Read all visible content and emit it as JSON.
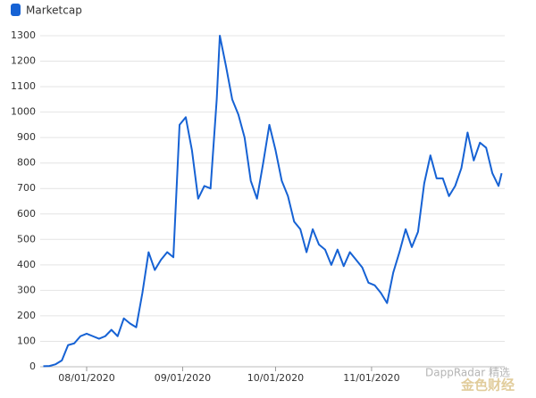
{
  "chart_data": {
    "type": "line",
    "series": [
      {
        "name": "Marketcap",
        "color": "#1662d4",
        "x": [
          "07/18/2020",
          "07/20/2020",
          "07/22/2020",
          "07/24/2020",
          "07/26/2020",
          "07/28/2020",
          "07/30/2020",
          "08/01/2020",
          "08/03/2020",
          "08/05/2020",
          "08/07/2020",
          "08/09/2020",
          "08/11/2020",
          "08/13/2020",
          "08/15/2020",
          "08/17/2020",
          "08/19/2020",
          "08/21/2020",
          "08/23/2020",
          "08/25/2020",
          "08/27/2020",
          "08/29/2020",
          "08/31/2020",
          "09/02/2020",
          "09/04/2020",
          "09/06/2020",
          "09/08/2020",
          "09/10/2020",
          "09/12/2020",
          "09/13/2020",
          "09/15/2020",
          "09/17/2020",
          "09/19/2020",
          "09/21/2020",
          "09/23/2020",
          "09/25/2020",
          "09/27/2020",
          "09/29/2020",
          "10/01/2020",
          "10/03/2020",
          "10/05/2020",
          "10/07/2020",
          "10/09/2020",
          "10/11/2020",
          "10/13/2020",
          "10/15/2020",
          "10/17/2020",
          "10/19/2020",
          "10/21/2020",
          "10/23/2020",
          "10/25/2020",
          "10/27/2020",
          "10/29/2020",
          "10/31/2020",
          "11/02/2020",
          "11/04/2020",
          "11/06/2020",
          "11/08/2020",
          "11/10/2020",
          "11/12/2020",
          "11/14/2020",
          "11/16/2020",
          "11/18/2020",
          "11/20/2020",
          "11/22/2020",
          "11/24/2020",
          "11/26/2020",
          "11/28/2020",
          "11/30/2020",
          "12/02/2020",
          "12/04/2020",
          "12/06/2020",
          "12/08/2020",
          "12/10/2020",
          "12/12/2020",
          "12/13/2020"
        ],
        "values": [
          2,
          3,
          10,
          25,
          85,
          92,
          120,
          130,
          120,
          110,
          120,
          145,
          120,
          190,
          170,
          155,
          290,
          450,
          380,
          420,
          450,
          430,
          950,
          980,
          850,
          660,
          710,
          700,
          1050,
          1300,
          1180,
          1050,
          990,
          900,
          730,
          660,
          800,
          950,
          850,
          730,
          670,
          570,
          540,
          450,
          540,
          480,
          460,
          400,
          460,
          395,
          450,
          420,
          390,
          330,
          320,
          290,
          250,
          370,
          450,
          540,
          470,
          530,
          720,
          830,
          740,
          740,
          670,
          710,
          780,
          920,
          810,
          880,
          860,
          760,
          710,
          760
        ]
      }
    ],
    "xlim": [
      "07/17/2020",
      "12/14/2020"
    ],
    "xticks": [
      "08/01/2020",
      "09/01/2020",
      "10/01/2020",
      "11/01/2020"
    ],
    "ylim": [
      0,
      1300
    ],
    "yticks": [
      0,
      100,
      200,
      300,
      400,
      500,
      600,
      700,
      800,
      900,
      1000,
      1100,
      1200,
      1300
    ],
    "grid": true,
    "watermark": [
      "DappRadar 精选",
      "金色财经"
    ]
  }
}
